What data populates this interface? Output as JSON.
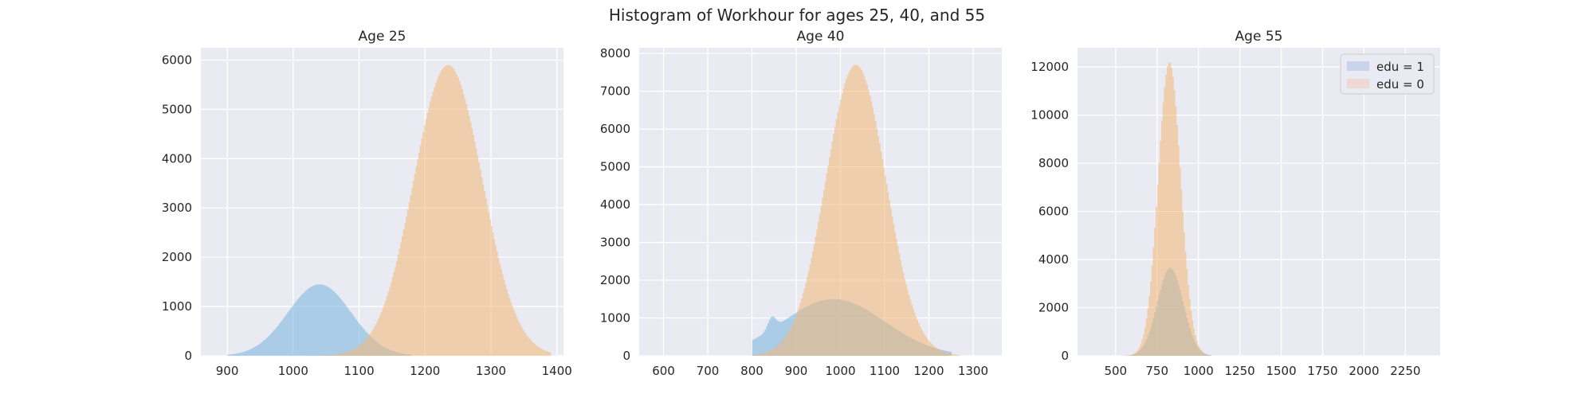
{
  "title": "Histogram of Workhour for ages 25, 40, and 55",
  "colors": {
    "panel_bg": "#EAEAF2",
    "grid": "#FFFFFF",
    "edu1_fill": "#7FB8E0",
    "edu0_fill": "#F3B774",
    "legend_edu1": "#C9D3EA",
    "legend_edu0": "#EFD9D6"
  },
  "legend": {
    "placement": "top-right",
    "entries": [
      "edu = 1",
      "edu = 0"
    ]
  },
  "chart_data": [
    {
      "type": "histogram",
      "title": "Age 25",
      "xlim": [
        860,
        1410
      ],
      "ylim": [
        0,
        6250
      ],
      "xticks": [
        900,
        1000,
        1100,
        1200,
        1300,
        1400
      ],
      "yticks": [
        0,
        1000,
        2000,
        3000,
        4000,
        5000,
        6000
      ],
      "grid": true,
      "series": [
        {
          "name": "edu = 1",
          "mean": 1040,
          "sd": 48,
          "peak": 1450,
          "range": [
            900,
            1180
          ]
        },
        {
          "name": "edu = 0",
          "mean": 1235,
          "sd": 52,
          "peak": 5900,
          "range": [
            1020,
            1390
          ]
        }
      ]
    },
    {
      "type": "histogram",
      "title": "Age 40",
      "xlim": [
        545,
        1365
      ],
      "ylim": [
        0,
        8150
      ],
      "xticks": [
        600,
        700,
        800,
        900,
        1000,
        1100,
        1200,
        1300
      ],
      "yticks": [
        0,
        1000,
        2000,
        3000,
        4000,
        5000,
        6000,
        7000,
        8000
      ],
      "grid": true,
      "series": [
        {
          "name": "edu = 1",
          "mean": 985,
          "sd": 115,
          "peak": 1500,
          "range": [
            800,
            1250
          ],
          "extra_peak": {
            "x": 845,
            "value": 1150
          }
        },
        {
          "name": "edu = 0",
          "mean": 1035,
          "sd": 68,
          "peak": 7700,
          "range": [
            800,
            1270
          ]
        }
      ]
    },
    {
      "type": "histogram",
      "title": "Age 55",
      "xlim": [
        270,
        2460
      ],
      "ylim": [
        0,
        12800
      ],
      "xticks": [
        500,
        750,
        1000,
        1250,
        1500,
        1750,
        2000,
        2250
      ],
      "yticks": [
        0,
        2000,
        4000,
        6000,
        8000,
        10000,
        12000
      ],
      "grid": true,
      "series": [
        {
          "name": "edu = 1",
          "mean": 830,
          "sd": 78,
          "peak": 3650,
          "range": [
            500,
            1080
          ]
        },
        {
          "name": "edu = 0",
          "mean": 825,
          "sd": 68,
          "peak": 12200,
          "range": [
            450,
            1100
          ]
        }
      ]
    }
  ]
}
